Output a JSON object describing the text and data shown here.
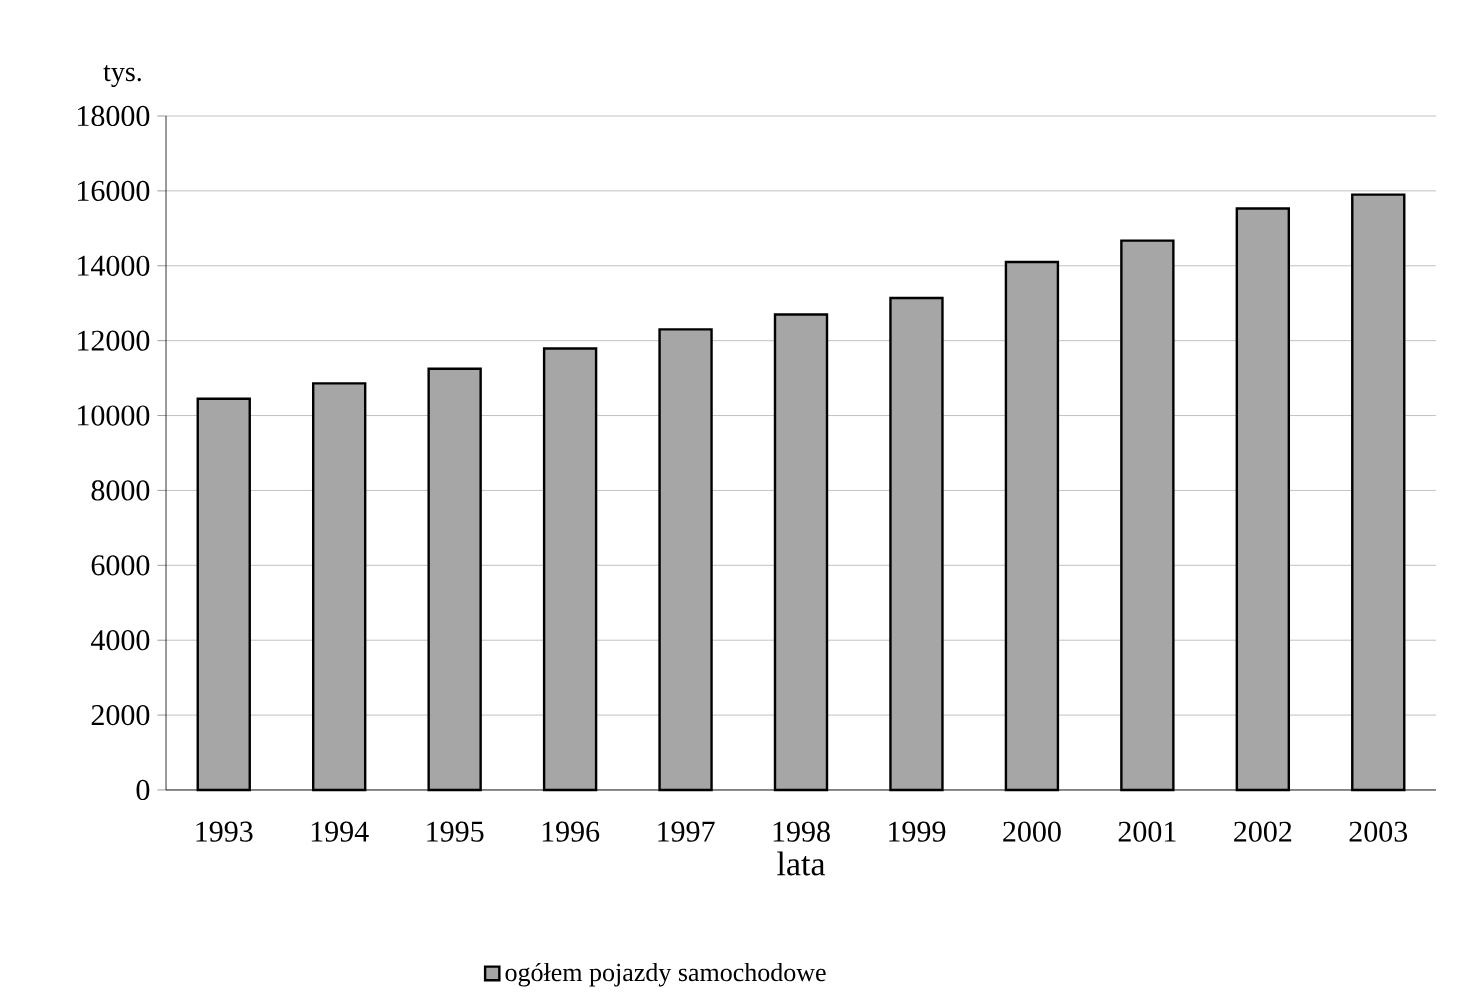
{
  "chart_data": {
    "type": "bar",
    "ylabel": "tys.",
    "xlabel": "lata",
    "categories": [
      "1993",
      "1994",
      "1995",
      "1996",
      "1997",
      "1998",
      "1999",
      "2000",
      "2001",
      "2002",
      "2003"
    ],
    "series": [
      {
        "name": "ogółem pojazdy samochodowe",
        "color": "#a6a6a6",
        "values": [
          10450,
          10860,
          11250,
          11790,
          12300,
          12700,
          13140,
          14100,
          14670,
          15530,
          15900
        ]
      }
    ],
    "ylim": [
      0,
      18000
    ],
    "yticks": [
      0,
      2000,
      4000,
      6000,
      8000,
      10000,
      12000,
      14000,
      16000,
      18000
    ],
    "grid": "y",
    "legend": "bottom"
  }
}
